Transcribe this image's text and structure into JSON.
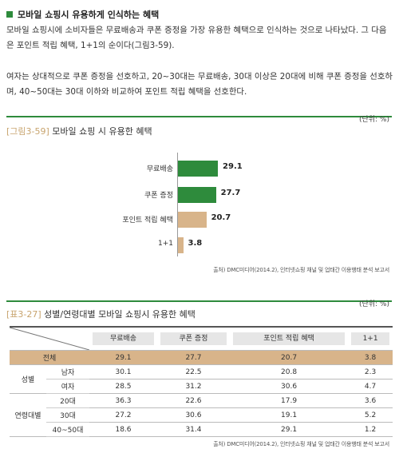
{
  "section": {
    "title": "모바일 쇼핑시 유용하게 인식하는 혜택",
    "para1": "모바일 쇼핑시에 소비자들은 무료배송과 쿠폰 증정을 가장 유용한 혜택으로 인식하는 것으로 나타났다. 그 다음은 포인트 적립 혜택, 1+1의 순이다(그림3-59).",
    "para2": "여자는 상대적으로 쿠폰 증정을 선호하고, 20~30대는 무료배송, 30대 이상은 20대에 비해 쿠폰 증정을 선호하며, 40~50대는 30대 이하와 비교하여 포인트 적립 혜택을 선호한다."
  },
  "figure": {
    "unit": "(단위: %)",
    "num": "[그림3-59]",
    "title": "모바일 쇼핑 시 유용한 혜택",
    "source": "출처) DMC미디어(2014.2), 인터넷쇼핑 채널 및 업태간 이용행태 분석 보고서"
  },
  "chart_data": {
    "type": "bar",
    "orientation": "horizontal",
    "categories": [
      "무료배송",
      "쿠폰 증정",
      "포인트 적립 혜택",
      "1+1"
    ],
    "values": [
      29.1,
      27.7,
      20.7,
      3.8
    ],
    "value_labels": [
      "29.1",
      "27.7",
      "20.7",
      "3.8"
    ],
    "colors": [
      "#2e8b3c",
      "#2e8b3c",
      "#d8b48a",
      "#d8b48a"
    ],
    "xlim": [
      0,
      100
    ],
    "grid": false
  },
  "table": {
    "unit": "(단위: %)",
    "num": "[표3-27]",
    "title": "성별/연령대별 모바일 쇼핑시 유용한 혜택",
    "headers": [
      "무료배송",
      "쿠폰 증정",
      "포인트 적립 혜택",
      "1+1"
    ],
    "total": {
      "label": "전체",
      "values": [
        "29.1",
        "27.7",
        "20.7",
        "3.8"
      ]
    },
    "groups": [
      {
        "label": "성별",
        "rows": [
          {
            "label": "남자",
            "values": [
              "30.1",
              "22.5",
              "20.8",
              "2.3"
            ]
          },
          {
            "label": "여자",
            "values": [
              "28.5",
              "31.2",
              "30.6",
              "4.7"
            ]
          }
        ]
      },
      {
        "label": "연령대별",
        "rows": [
          {
            "label": "20대",
            "values": [
              "36.3",
              "22.6",
              "17.9",
              "3.6"
            ]
          },
          {
            "label": "30대",
            "values": [
              "27.2",
              "30.6",
              "19.1",
              "5.2"
            ]
          },
          {
            "label": "40~50대",
            "values": [
              "18.6",
              "31.4",
              "29.1",
              "1.2"
            ]
          }
        ]
      }
    ],
    "source": "출처) DMC미디어(2014.2), 인터넷쇼핑 채널 및 업태간 이용행태 분석 보고서"
  }
}
